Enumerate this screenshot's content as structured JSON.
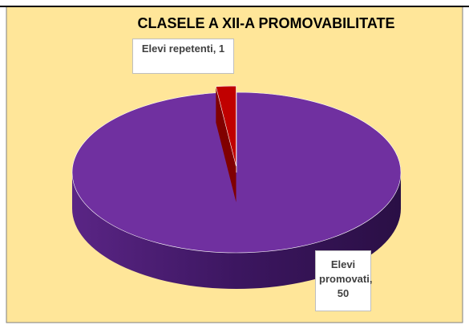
{
  "chart_data": {
    "type": "pie",
    "title": "CLASELE A XII-A PROMOVABILITATE",
    "categories": [
      "Elevi promovati",
      "Elevi repetenti"
    ],
    "values": [
      50,
      1
    ],
    "value_labels": [
      "Elevi promovati, 50",
      "Elevi repetenti, 1"
    ],
    "colors": [
      "#7030a0",
      "#c00000"
    ]
  }
}
